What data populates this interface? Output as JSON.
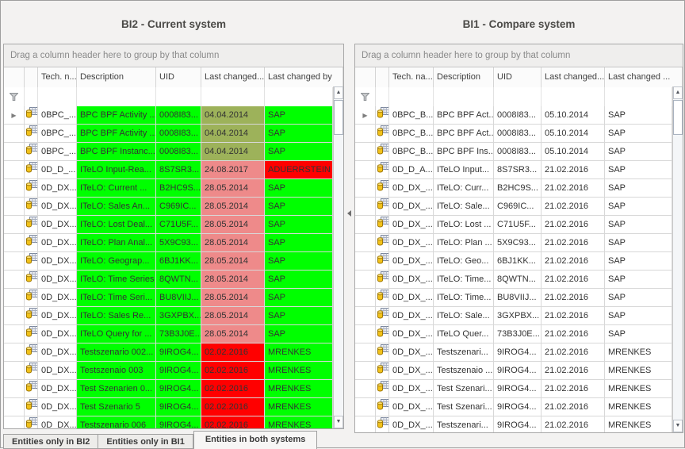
{
  "colors": {
    "green": "#00FF00",
    "olive": "#9DB25A",
    "pink": "#EE8A8A",
    "red": "#FF0000"
  },
  "tabs": [
    {
      "label": "Entities only in BI2",
      "active": false
    },
    {
      "label": "Entities only in BI1",
      "active": false
    },
    {
      "label": "Entities in both systems",
      "active": true
    }
  ],
  "panels": [
    {
      "title": "BI2 -  Current system",
      "drag_hint": "Drag a column header here to group by that column",
      "columns": [
        "Tech. n...",
        "Description",
        "UID",
        "Last changed...",
        "Last changed by"
      ],
      "rows": [
        {
          "tech": "0BPC_...",
          "desc": "BPC BPF Activity ...",
          "uid": "0008I83...",
          "date": "04.04.2014",
          "by": "SAP",
          "bg": {
            "desc": "green",
            "uid": "green",
            "date": "olive",
            "by": "green"
          },
          "indicator": true
        },
        {
          "tech": "0BPC_...",
          "desc": "BPC BPF Activity ...",
          "uid": "0008I83...",
          "date": "04.04.2014",
          "by": "SAP",
          "bg": {
            "desc": "green",
            "uid": "green",
            "date": "olive",
            "by": "green"
          }
        },
        {
          "tech": "0BPC_...",
          "desc": "BPC BPF Instanc...",
          "uid": "0008I83...",
          "date": "04.04.2014",
          "by": "SAP",
          "bg": {
            "desc": "green",
            "uid": "green",
            "date": "olive",
            "by": "green"
          }
        },
        {
          "tech": "0D_D_...",
          "desc": "ITeLO Input-Rea...",
          "uid": "8S7SR3...",
          "date": "24.08.2017",
          "by": "ADUERRSTEIN",
          "bg": {
            "desc": "green",
            "uid": "green",
            "date": "pink",
            "by": "red"
          }
        },
        {
          "tech": "0D_DX...",
          "desc": "ITeLO: Current ...",
          "uid": "B2HC9S...",
          "date": "28.05.2014",
          "by": "SAP",
          "bg": {
            "desc": "green",
            "uid": "green",
            "date": "pink",
            "by": "green"
          }
        },
        {
          "tech": "0D_DX...",
          "desc": "ITeLO: Sales An...",
          "uid": "C969IC...",
          "date": "28.05.2014",
          "by": "SAP",
          "bg": {
            "desc": "green",
            "uid": "green",
            "date": "pink",
            "by": "green"
          }
        },
        {
          "tech": "0D_DX...",
          "desc": "ITeLO: Lost Deal...",
          "uid": "C71U5F...",
          "date": "28.05.2014",
          "by": "SAP",
          "bg": {
            "desc": "green",
            "uid": "green",
            "date": "pink",
            "by": "green"
          }
        },
        {
          "tech": "0D_DX...",
          "desc": "ITeLO: Plan Anal...",
          "uid": "5X9C93...",
          "date": "28.05.2014",
          "by": "SAP",
          "bg": {
            "desc": "green",
            "uid": "green",
            "date": "pink",
            "by": "green"
          }
        },
        {
          "tech": "0D_DX...",
          "desc": "ITeLO: Geograp...",
          "uid": "6BJ1KK...",
          "date": "28.05.2014",
          "by": "SAP",
          "bg": {
            "desc": "green",
            "uid": "green",
            "date": "pink",
            "by": "green"
          }
        },
        {
          "tech": "0D_DX...",
          "desc": "ITeLO: Time Series",
          "uid": "8QWTN...",
          "date": "28.05.2014",
          "by": "SAP",
          "bg": {
            "desc": "green",
            "uid": "green",
            "date": "pink",
            "by": "green"
          }
        },
        {
          "tech": "0D_DX...",
          "desc": "ITeLO: Time Seri...",
          "uid": "BU8VIIJ...",
          "date": "28.05.2014",
          "by": "SAP",
          "bg": {
            "desc": "green",
            "uid": "green",
            "date": "pink",
            "by": "green"
          }
        },
        {
          "tech": "0D_DX...",
          "desc": "ITeLO: Sales Re...",
          "uid": "3GXPBX...",
          "date": "28.05.2014",
          "by": "SAP",
          "bg": {
            "desc": "green",
            "uid": "green",
            "date": "pink",
            "by": "green"
          }
        },
        {
          "tech": "0D_DX...",
          "desc": "ITeLO Query for ...",
          "uid": "73B3J0E...",
          "date": "28.05.2014",
          "by": "SAP",
          "bg": {
            "desc": "green",
            "uid": "green",
            "date": "pink",
            "by": "green"
          }
        },
        {
          "tech": "0D_DX...",
          "desc": "Testszenario 002...",
          "uid": "9IROG4...",
          "date": "02.02.2016",
          "by": "MRENKES",
          "bg": {
            "desc": "green",
            "uid": "green",
            "date": "red",
            "by": "green"
          }
        },
        {
          "tech": "0D_DX...",
          "desc": "Testszenaio 003",
          "uid": "9IROG4...",
          "date": "02.02.2016",
          "by": "MRENKES",
          "bg": {
            "desc": "green",
            "uid": "green",
            "date": "red",
            "by": "green"
          }
        },
        {
          "tech": "0D_DX...",
          "desc": "Test Szenarien 0...",
          "uid": "9IROG4...",
          "date": "02.02.2016",
          "by": "MRENKES",
          "bg": {
            "desc": "green",
            "uid": "green",
            "date": "red",
            "by": "green"
          }
        },
        {
          "tech": "0D_DX...",
          "desc": "Test Szenario 5",
          "uid": "9IROG4...",
          "date": "02.02.2016",
          "by": "MRENKES",
          "bg": {
            "desc": "green",
            "uid": "green",
            "date": "red",
            "by": "green"
          }
        },
        {
          "tech": "0D_DX...",
          "desc": "Testszenario 006",
          "uid": "9IROG4...",
          "date": "02.02.2016",
          "by": "MRENKES",
          "bg": {
            "desc": "green",
            "uid": "green",
            "date": "red",
            "by": "green"
          }
        }
      ]
    },
    {
      "title": "BI1 -  Compare system",
      "drag_hint": "Drag a column header here to group by that column",
      "columns": [
        "Tech. na...",
        "Description",
        "UID",
        "Last changed...",
        "Last changed ..."
      ],
      "rows": [
        {
          "tech": "0BPC_B...",
          "desc": "BPC BPF Act...",
          "uid": "0008I83...",
          "date": "05.10.2014",
          "by": "SAP",
          "indicator": true
        },
        {
          "tech": "0BPC_B...",
          "desc": "BPC BPF Act...",
          "uid": "0008I83...",
          "date": "05.10.2014",
          "by": "SAP"
        },
        {
          "tech": "0BPC_B...",
          "desc": "BPC BPF Ins...",
          "uid": "0008I83...",
          "date": "05.10.2014",
          "by": "SAP"
        },
        {
          "tech": "0D_D_A...",
          "desc": "ITeLO Input...",
          "uid": "8S7SR3...",
          "date": "21.02.2016",
          "by": "SAP"
        },
        {
          "tech": "0D_DX_...",
          "desc": "ITeLO: Curr...",
          "uid": "B2HC9S...",
          "date": "21.02.2016",
          "by": "SAP"
        },
        {
          "tech": "0D_DX_...",
          "desc": "ITeLO: Sale...",
          "uid": "C969IC...",
          "date": "21.02.2016",
          "by": "SAP"
        },
        {
          "tech": "0D_DX_...",
          "desc": "ITeLO: Lost ...",
          "uid": "C71U5F...",
          "date": "21.02.2016",
          "by": "SAP"
        },
        {
          "tech": "0D_DX_...",
          "desc": "ITeLO: Plan ...",
          "uid": "5X9C93...",
          "date": "21.02.2016",
          "by": "SAP"
        },
        {
          "tech": "0D_DX_...",
          "desc": "ITeLO: Geo...",
          "uid": "6BJ1KK...",
          "date": "21.02.2016",
          "by": "SAP"
        },
        {
          "tech": "0D_DX_...",
          "desc": "ITeLO: Time...",
          "uid": "8QWTN...",
          "date": "21.02.2016",
          "by": "SAP"
        },
        {
          "tech": "0D_DX_...",
          "desc": "ITeLO: Time...",
          "uid": "BU8VIIJ...",
          "date": "21.02.2016",
          "by": "SAP"
        },
        {
          "tech": "0D_DX_...",
          "desc": "ITeLO: Sale...",
          "uid": "3GXPBX...",
          "date": "21.02.2016",
          "by": "SAP"
        },
        {
          "tech": "0D_DX_...",
          "desc": "ITeLO Quer...",
          "uid": "73B3J0E...",
          "date": "21.02.2016",
          "by": "SAP"
        },
        {
          "tech": "0D_DX_...",
          "desc": "Testszenari...",
          "uid": "9IROG4...",
          "date": "21.02.2016",
          "by": "MRENKES"
        },
        {
          "tech": "0D_DX_...",
          "desc": "Testszenaio ...",
          "uid": "9IROG4...",
          "date": "21.02.2016",
          "by": "MRENKES"
        },
        {
          "tech": "0D_DX_...",
          "desc": "Test Szenari...",
          "uid": "9IROG4...",
          "date": "21.02.2016",
          "by": "MRENKES"
        },
        {
          "tech": "0D_DX_...",
          "desc": "Test Szenari...",
          "uid": "9IROG4...",
          "date": "21.02.2016",
          "by": "MRENKES"
        },
        {
          "tech": "0D_DX_...",
          "desc": "Testszenari...",
          "uid": "9IROG4...",
          "date": "21.02.2016",
          "by": "MRENKES"
        }
      ]
    }
  ]
}
